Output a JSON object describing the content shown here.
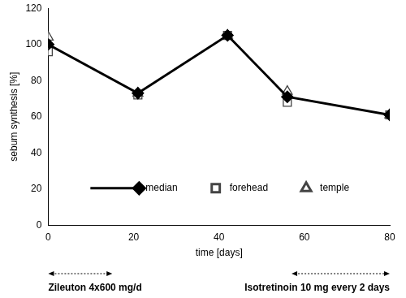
{
  "chart_data": {
    "type": "line",
    "x": [
      0,
      21,
      42,
      56,
      80
    ],
    "series": [
      {
        "name": "median",
        "color": "#000000",
        "marker": "diamond",
        "line_style": "solid",
        "values": [
          100,
          73,
          105,
          71,
          61
        ]
      },
      {
        "name": "forehead",
        "color": "#444444",
        "marker": "square",
        "line_style": "none",
        "values": [
          96,
          72,
          105,
          68,
          61
        ]
      },
      {
        "name": "temple",
        "color": "#444444",
        "marker": "triangle",
        "line_style": "none",
        "values": [
          104,
          73,
          105,
          74,
          61
        ]
      }
    ],
    "x_label": "time [days]",
    "y_label": "sebum synthesis [%]",
    "xlim": [
      0,
      80
    ],
    "xticks": [
      0,
      20,
      40,
      60,
      80
    ],
    "ylim": [
      0,
      120
    ],
    "yticks": [
      0,
      20,
      40,
      60,
      80,
      100,
      120
    ],
    "grid": false,
    "legend": "bottom",
    "annotations": [
      {
        "text": "Zileuton 4x600 mg/d",
        "x": [
          0,
          15
        ]
      },
      {
        "text": "Isotretinoin 10 mg every 2 days",
        "x": [
          57,
          80
        ]
      }
    ]
  }
}
